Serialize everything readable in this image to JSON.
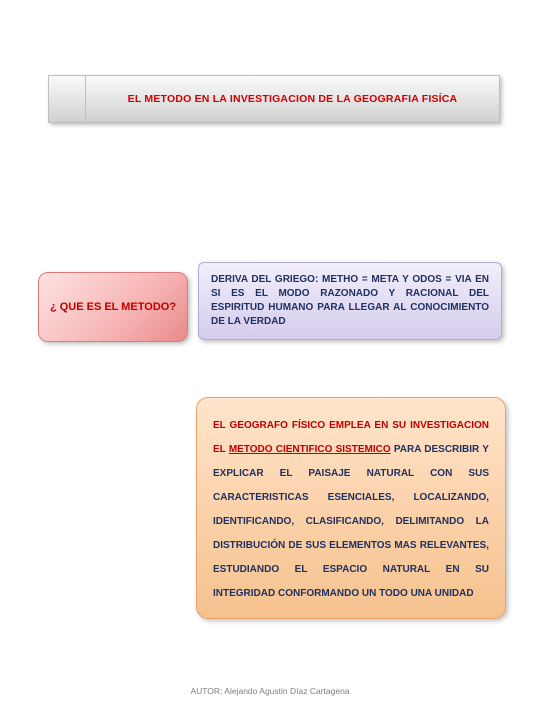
{
  "header": {
    "title": "EL METODO EN LA INVESTIGACION DE LA GEOGRAFIA FISÍCA"
  },
  "question_box": {
    "text": "¿ QUE ES EL METODO?",
    "bg_gradient": [
      "#fde2e2",
      "#f7b4b4",
      "#e98a8a"
    ],
    "text_color": "#c00000",
    "border_color": "#d77c7c"
  },
  "definition_box": {
    "text": "DERIVA DEL GRIEGO: METHO = META Y ODOS = VIA EN SI ES EL MODO RAZONADO Y RACIONAL DEL ESPIRITUD HUMANO PARA LLEGAR AL CONOCIMIENTO DE LA VERDAD",
    "bg_gradient": [
      "#f2effa",
      "#e3ddf4",
      "#d5cceb"
    ],
    "text_color": "#203060",
    "border_color": "#b5a9d6"
  },
  "info_box": {
    "red_lead": "EL GEOGRAFO FÍSICO EMPLEA EN SU INVESTIGACION EL ",
    "red_underline": "METODO CIENTIFICO SISTEMICO",
    "body": " PARA DESCRIBIR Y EXPLICAR EL PAISAJE NATURAL CON SUS CARACTERISTICAS ESENCIALES, LOCALIZANDO, IDENTIFICANDO, CLASIFICANDO, DELIMITANDO LA DISTRIBUCIÓN DE SUS ELEMENTOS MAS RELEVANTES, ESTUDIANDO EL ESPACIO NATURAL EN SU INTEGRIDAD CONFORMANDO UN TODO UNA UNIDAD",
    "bg_gradient": [
      "#ffe5cc",
      "#fbd2ab",
      "#f5c28e"
    ],
    "red_color": "#c00000",
    "body_color": "#203060",
    "border_color": "#e6a36a"
  },
  "footer": {
    "text": "AUTOR: Alejando Agustin Díaz Cartagena"
  }
}
